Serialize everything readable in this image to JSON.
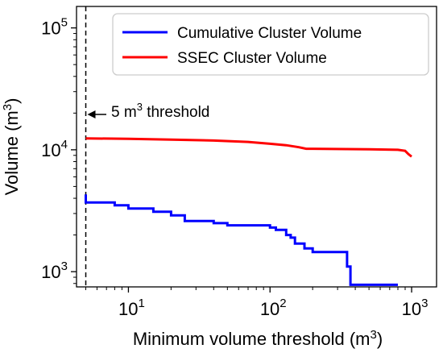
{
  "chart_data": {
    "type": "line",
    "x_scale": "log",
    "y_scale": "log",
    "xlim": [
      4.3,
      1500
    ],
    "ylim": [
      750,
      150000
    ],
    "xlabel": {
      "main": "Minimum volume threshold (m",
      "sup": "3",
      "end": ")"
    },
    "ylabel": {
      "main": "Volume (m",
      "sup": "3",
      "end": ")"
    },
    "x_ticks": [
      {
        "value": 10,
        "base": "10",
        "exp": "1"
      },
      {
        "value": 100,
        "base": "10",
        "exp": "2"
      },
      {
        "value": 1000,
        "base": "10",
        "exp": "3"
      }
    ],
    "y_ticks": [
      {
        "value": 1000,
        "base": "10",
        "exp": "3"
      },
      {
        "value": 10000,
        "base": "10",
        "exp": "4"
      },
      {
        "value": 100000,
        "base": "10",
        "exp": "5"
      }
    ],
    "legend_position": "top-right",
    "series": [
      {
        "name": "Cumulative Cluster Volume",
        "color": "#0000ff",
        "points": [
          [
            5,
            4300
          ],
          [
            5,
            3700
          ],
          [
            8,
            3700
          ],
          [
            8,
            3500
          ],
          [
            10,
            3500
          ],
          [
            10,
            3300
          ],
          [
            15,
            3300
          ],
          [
            15,
            3100
          ],
          [
            20,
            3100
          ],
          [
            20,
            2900
          ],
          [
            25,
            2900
          ],
          [
            25,
            2600
          ],
          [
            40,
            2600
          ],
          [
            40,
            2500
          ],
          [
            50,
            2500
          ],
          [
            50,
            2400
          ],
          [
            100,
            2400
          ],
          [
            100,
            2300
          ],
          [
            110,
            2300
          ],
          [
            110,
            2200
          ],
          [
            130,
            2200
          ],
          [
            130,
            2000
          ],
          [
            140,
            2000
          ],
          [
            140,
            1900
          ],
          [
            150,
            1900
          ],
          [
            150,
            1700
          ],
          [
            175,
            1700
          ],
          [
            175,
            1550
          ],
          [
            200,
            1550
          ],
          [
            200,
            1450
          ],
          [
            350,
            1450
          ],
          [
            350,
            1100
          ],
          [
            370,
            1100
          ],
          [
            370,
            780
          ],
          [
            800,
            780
          ]
        ]
      },
      {
        "name": "SSEC Cluster Volume",
        "color": "#ff0000",
        "points": [
          [
            5,
            12400
          ],
          [
            10,
            12300
          ],
          [
            20,
            12100
          ],
          [
            40,
            11900
          ],
          [
            70,
            11600
          ],
          [
            100,
            11200
          ],
          [
            130,
            10900
          ],
          [
            160,
            10500
          ],
          [
            180,
            10200
          ],
          [
            200,
            10200
          ],
          [
            500,
            10100
          ],
          [
            800,
            10000
          ],
          [
            900,
            9800
          ],
          [
            950,
            9200
          ],
          [
            1000,
            8800
          ]
        ]
      }
    ],
    "threshold_line": {
      "x": 5,
      "style": "dashed",
      "color": "#000000"
    },
    "annotation": {
      "text_pre": "5 m",
      "sup": "3",
      "text_post": " threshold",
      "arrow_tip": [
        5,
        19500
      ]
    }
  }
}
